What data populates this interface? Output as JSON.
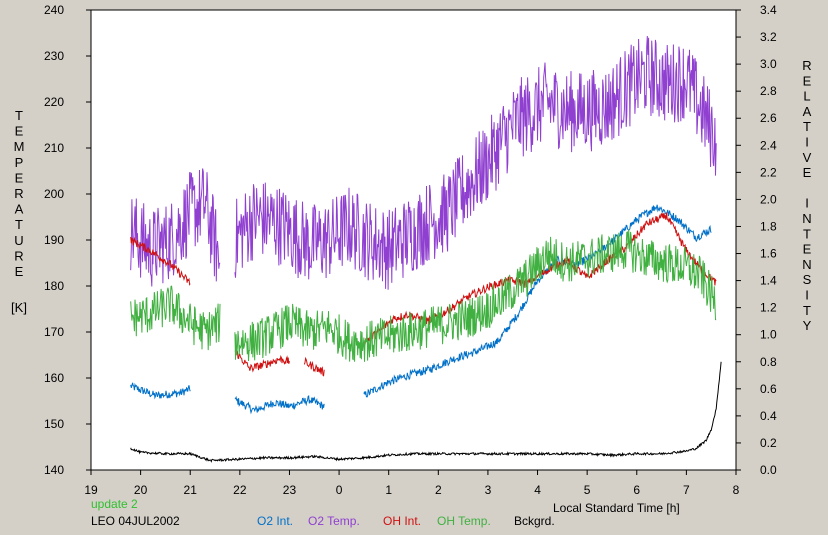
{
  "chart_data": {
    "type": "line",
    "xlabel": "Local Standard Time [h]",
    "ylabel_left": "TEMPERATURE",
    "ylabel_left_unit": "[K]",
    "ylabel_right": "RELATIVE INTENSITY",
    "x_ticks": [
      "19",
      "20",
      "21",
      "22",
      "23",
      "0",
      "1",
      "2",
      "3",
      "4",
      "5",
      "6",
      "7",
      "8"
    ],
    "xlim": [
      19,
      32
    ],
    "ylim_left": [
      140,
      240
    ],
    "y_ticks_left": [
      140,
      150,
      160,
      170,
      180,
      190,
      200,
      210,
      220,
      230,
      240
    ],
    "ylim_right": [
      0.0,
      3.4
    ],
    "y_ticks_right": [
      "0.0",
      "0.2",
      "0.4",
      "0.6",
      "0.8",
      "1.0",
      "1.2",
      "1.4",
      "1.6",
      "1.8",
      "2.0",
      "2.2",
      "2.4",
      "2.6",
      "2.8",
      "3.0",
      "3.2",
      "3.4"
    ],
    "grid": false,
    "series": [
      {
        "name": "O2 Int.",
        "axis": "right",
        "color": "#0070c8",
        "segments": [
          {
            "x": [
              19.8,
              20.3,
              20.8,
              21.0
            ],
            "y": [
              0.62,
              0.55,
              0.57,
              0.6
            ]
          },
          {
            "x": [
              21.9,
              22.3,
              22.7,
              23.0,
              23.4,
              23.7
            ],
            "y": [
              0.52,
              0.44,
              0.5,
              0.47,
              0.52,
              0.47
            ]
          },
          {
            "x": [
              24.5,
              25.0,
              25.4,
              25.8,
              26.3,
              26.8,
              27.2,
              27.6,
              28.0,
              28.4,
              28.8,
              29.2,
              29.6,
              30.0,
              30.4,
              30.8,
              31.2,
              31.5
            ],
            "y": [
              0.55,
              0.65,
              0.7,
              0.74,
              0.82,
              0.88,
              0.95,
              1.15,
              1.4,
              1.55,
              1.52,
              1.6,
              1.72,
              1.85,
              1.95,
              1.86,
              1.72,
              1.78
            ]
          }
        ]
      },
      {
        "name": "O2 Temp.",
        "axis": "left",
        "color": "#9040d0",
        "segments": [
          {
            "x": [
              19.8,
              20.2,
              20.6,
              21.0,
              21.3,
              21.6
            ],
            "y": [
              192,
              188,
              190,
              196,
              198,
              185
            ]
          },
          {
            "x": [
              21.9,
              22.3,
              22.7,
              23.0,
              23.4,
              23.8,
              24.2,
              24.6,
              25.0,
              25.4,
              25.8,
              26.2,
              26.6,
              27.0,
              27.3,
              27.6,
              27.9,
              28.2,
              28.6,
              29.0,
              29.4,
              29.8,
              30.2,
              30.6,
              31.0,
              31.4,
              31.6
            ],
            "y": [
              190,
              195,
              194,
              192,
              189,
              190,
              193,
              190,
              188,
              191,
              194,
              196,
              202,
              207,
              212,
              216,
              218,
              220,
              218,
              218,
              219,
              223,
              226,
              224,
              225,
              216,
              212
            ]
          }
        ]
      },
      {
        "name": "OH Int.",
        "axis": "right",
        "color": "#d01010",
        "segments": [
          {
            "x": [
              19.8,
              20.2,
              20.6,
              21.0
            ],
            "y": [
              1.7,
              1.62,
              1.52,
              1.38
            ]
          },
          {
            "x": [
              21.9,
              22.2,
              22.5,
              22.8,
              23.0
            ],
            "y": [
              0.88,
              0.75,
              0.78,
              0.82,
              0.8
            ]
          },
          {
            "x": [
              23.3,
              23.7
            ],
            "y": [
              0.8,
              0.72
            ]
          },
          {
            "x": [
              24.5,
              24.8,
              25.1,
              25.4,
              25.8,
              26.2,
              26.6,
              27.0,
              27.4,
              27.8,
              28.2,
              28.6,
              29.0,
              29.4,
              29.8,
              30.2,
              30.6,
              31.0,
              31.3,
              31.6
            ],
            "y": [
              0.95,
              1.02,
              1.12,
              1.15,
              1.1,
              1.18,
              1.28,
              1.35,
              1.4,
              1.38,
              1.48,
              1.55,
              1.42,
              1.55,
              1.65,
              1.82,
              1.88,
              1.62,
              1.48,
              1.38
            ]
          }
        ]
      },
      {
        "name": "OH Temp.",
        "axis": "left",
        "color": "#40b040",
        "segments": [
          {
            "x": [
              19.8,
              20.2,
              20.6,
              21.0,
              21.3,
              21.6
            ],
            "y": [
              173,
              174,
              176,
              172,
              170,
              172
            ]
          },
          {
            "x": [
              21.9,
              22.3,
              22.7,
              23.0,
              23.4,
              23.8,
              24.2,
              24.6,
              25.0,
              25.4,
              25.8,
              26.2,
              26.6,
              27.0,
              27.4,
              27.8,
              28.2,
              28.6,
              29.0,
              29.4,
              29.8,
              30.2,
              30.6,
              31.0,
              31.3,
              31.6
            ],
            "y": [
              168,
              168,
              170,
              172,
              170,
              171,
              168,
              168,
              169,
              170,
              171,
              172,
              173,
              175,
              178,
              182,
              187,
              185,
              186,
              187,
              188,
              186,
              185,
              184,
              182,
              176
            ]
          }
        ]
      },
      {
        "name": "Bckgrd.",
        "axis": "right",
        "color": "#000000",
        "segments": [
          {
            "x": [
              19.8,
              20.0,
              20.5,
              21.0,
              21.4,
              22.0,
              22.5,
              23.0,
              23.5,
              24.0,
              24.5,
              25.0,
              25.5,
              26.0,
              26.5,
              27.0,
              27.5,
              28.0,
              28.5,
              29.0,
              29.5,
              30.0,
              30.5,
              31.0,
              31.2,
              31.4,
              31.5,
              31.6,
              31.7
            ],
            "y": [
              0.16,
              0.13,
              0.12,
              0.12,
              0.07,
              0.08,
              0.09,
              0.09,
              0.1,
              0.08,
              0.09,
              0.11,
              0.12,
              0.12,
              0.12,
              0.12,
              0.12,
              0.12,
              0.12,
              0.12,
              0.11,
              0.12,
              0.12,
              0.14,
              0.16,
              0.22,
              0.3,
              0.45,
              0.8
            ]
          }
        ]
      }
    ]
  },
  "footer": {
    "update_label": "update 2",
    "station_label": "LEO 04JUL2002"
  },
  "colors": {
    "background": "#d4d0c8",
    "plot_area": "#ffffff"
  }
}
